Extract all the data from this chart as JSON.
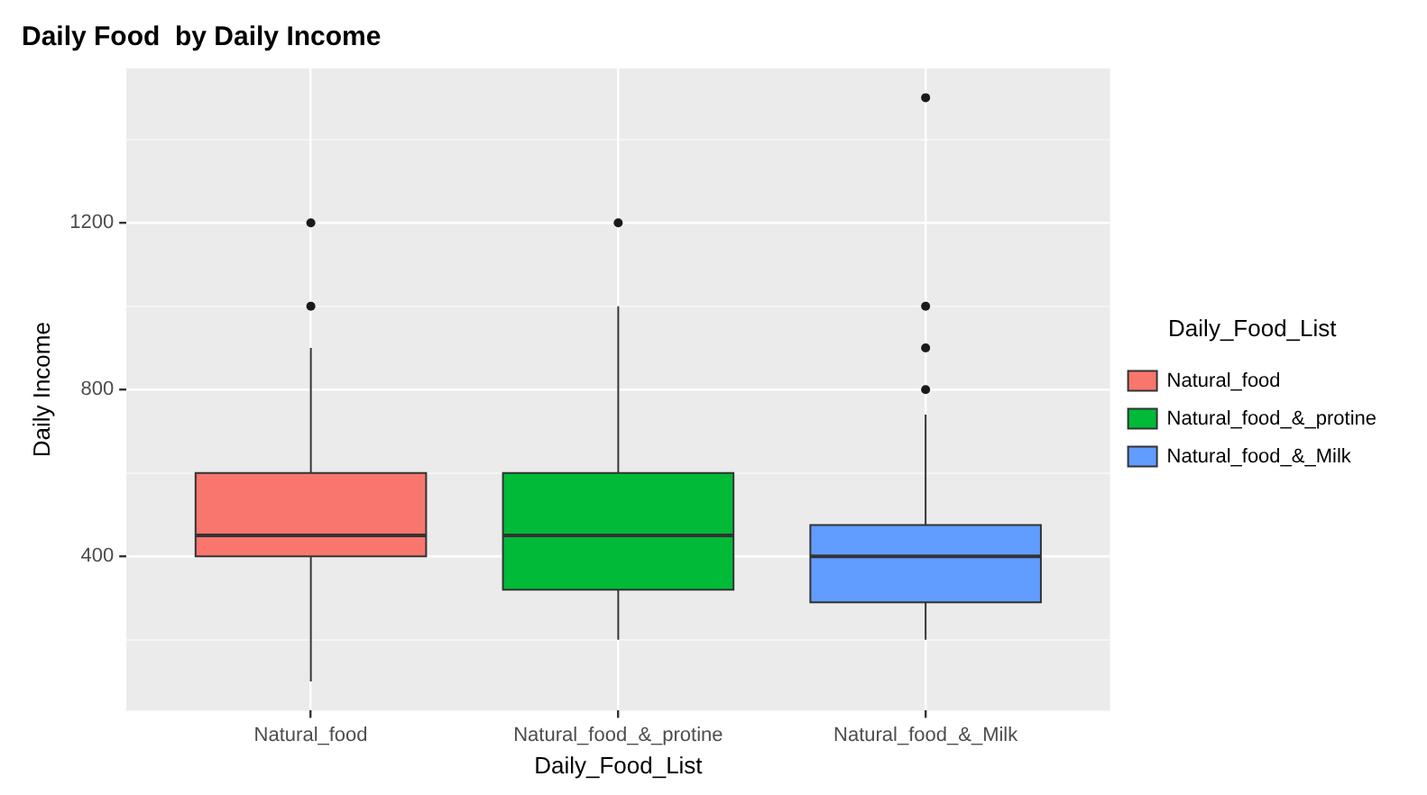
{
  "chart_data": {
    "type": "box",
    "title": "Daily Food  by Daily Income",
    "xlabel": "Daily_Food_List",
    "ylabel": "Daily Income",
    "legend_title": "Daily_Food_List",
    "categories": [
      "Natural_food",
      "Natural_food_&_protine",
      "Natural_food_&_Milk"
    ],
    "series": [
      {
        "name": "Natural_food",
        "color": "#f8766d",
        "boxes": [
          {
            "low": 100,
            "q1": 400,
            "median": 450,
            "q3": 600,
            "high": 900,
            "outliers": [
              1000,
              1200
            ]
          },
          null,
          null
        ]
      },
      {
        "name": "Natural_food_&_protine",
        "color": "#00ba38",
        "boxes": [
          null,
          {
            "low": 200,
            "q1": 320,
            "median": 450,
            "q3": 600,
            "high": 1000,
            "outliers": [
              1200
            ]
          },
          null
        ]
      },
      {
        "name": "Natural_food_&_Milk",
        "color": "#619cff",
        "boxes": [
          null,
          null,
          {
            "low": 200,
            "q1": 290,
            "median": 400,
            "q3": 475,
            "high": 740,
            "outliers": [
              800,
              900,
              1000,
              1500
            ]
          }
        ]
      }
    ],
    "ylim": [
      30,
      1570
    ],
    "yticks": [
      {
        "value": 200,
        "label": null
      },
      400,
      {
        "value": 600,
        "label": null
      },
      800,
      {
        "value": 1000,
        "label": null
      },
      1200,
      {
        "value": 1400,
        "label": null
      }
    ],
    "grid": true,
    "legend": "right"
  }
}
